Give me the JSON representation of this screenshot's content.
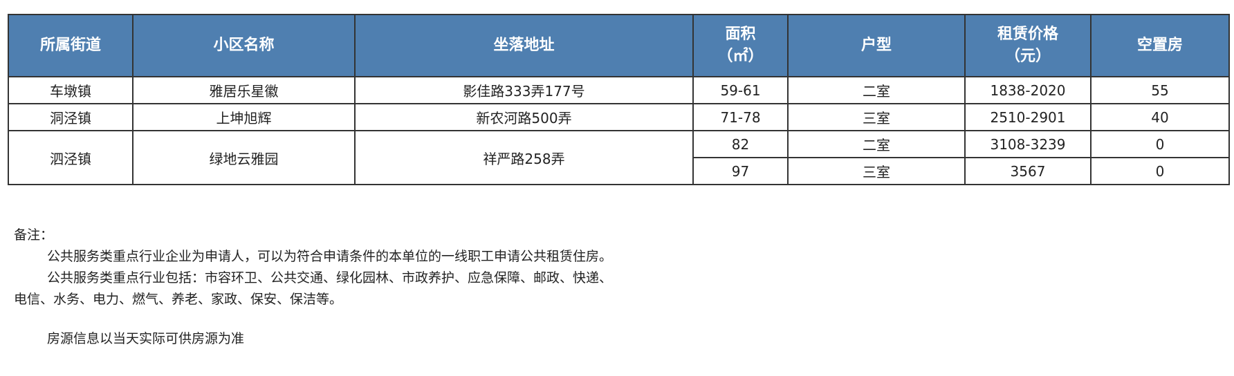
{
  "table": {
    "headers": [
      "所属街道",
      "小区名称",
      "坐落地址",
      "面积\n（㎡）",
      "户型",
      "租赁价格\n（元）",
      "空置房"
    ],
    "header_color": "#4f7fb0",
    "groups": [
      {
        "street": "车墩镇",
        "community": "雅居乐星徽",
        "address": "影佳路333弄177号",
        "units": [
          {
            "area": "59-61",
            "type": "二室",
            "price": "1838-2020",
            "vacant": "55"
          }
        ]
      },
      {
        "street": "洞泾镇",
        "community": "上坤旭辉",
        "address": "新农河路500弄",
        "units": [
          {
            "area": "71-78",
            "type": "三室",
            "price": "2510-2901",
            "vacant": "40"
          }
        ]
      },
      {
        "street": "泗泾镇",
        "community": "绿地云雅园",
        "address": "祥严路258弄",
        "units": [
          {
            "area": "82",
            "type": "二室",
            "price": "3108-3239",
            "vacant": "0"
          },
          {
            "area": "97",
            "type": "三室",
            "price": "3567",
            "vacant": "0"
          }
        ]
      }
    ]
  },
  "notes": {
    "title": "备注：",
    "line1": "公共服务类重点行业企业为申请人，可以为符合申请条件的本单位的一线职工申请公共租赁住房。",
    "line2a": "公共服务类重点行业包括：市容环卫、公共交通、绿化园林、市政养护、应急保障、邮政、快递、",
    "line2b": "电信、水务、电力、燃气、养老、家政、保安、保洁等。",
    "line3": "房源信息以当天实际可供房源为准"
  }
}
